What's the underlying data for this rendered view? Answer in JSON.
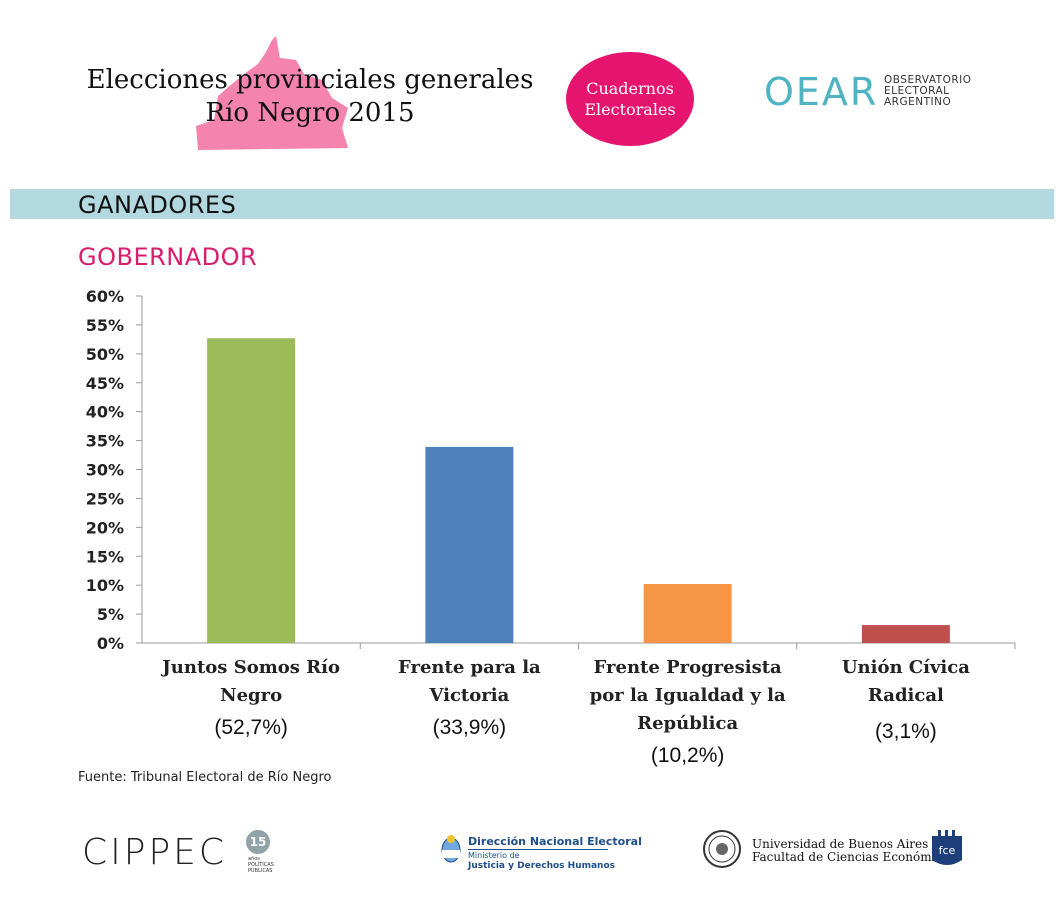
{
  "header": {
    "title_line1": "Elecciones provinciales generales",
    "title_line2": "Río Negro 2015",
    "badge_line1": "Cuadernos",
    "badge_line2": "Electorales",
    "oear_word": "OEAR",
    "oear_sub1": "OBSERVATORIO",
    "oear_sub2": "ELECTORAL",
    "oear_sub3": "ARGENTINO"
  },
  "section": {
    "title": "GANADORES",
    "subtitle": "GOBERNADOR"
  },
  "colors": {
    "accent_pink": "#e5146e",
    "subtitle_pink": "#d91c6c",
    "bar_band": "#b2d9e0",
    "province_pink": "#f483ad",
    "oear_teal": "#4fb3c4"
  },
  "chart_data": {
    "type": "bar",
    "title": "GOBERNADOR",
    "categories": [
      "Juntos Somos Río Negro",
      "Frente para la Victoria",
      "Frente Progresista por la Igualdad y la República",
      "Unión Cívica Radical"
    ],
    "category_lines": [
      [
        "Juntos Somos Río",
        "Negro"
      ],
      [
        "Frente para la",
        "Victoria"
      ],
      [
        "Frente Progresista",
        "por la Igualdad y la",
        "República"
      ],
      [
        "Unión Cívica",
        "Radical"
      ]
    ],
    "values": [
      52.7,
      33.9,
      10.2,
      3.1
    ],
    "value_labels": [
      "(52,7%)",
      "(33,9%)",
      "(10,2%)",
      "(3,1%)"
    ],
    "bar_colors": [
      "#9bbb59",
      "#4f81bd",
      "#f79646",
      "#c0504d"
    ],
    "ylim": [
      0,
      60
    ],
    "yticks": [
      0,
      5,
      10,
      15,
      20,
      25,
      30,
      35,
      40,
      45,
      50,
      55,
      60
    ],
    "ytick_labels": [
      "0%",
      "5%",
      "10%",
      "15%",
      "20%",
      "25%",
      "30%",
      "35%",
      "40%",
      "45%",
      "50%",
      "55%",
      "60%"
    ],
    "xlabel": "",
    "ylabel": "",
    "grid": false
  },
  "source_note": "Fuente: Tribunal Electoral de Río Negro",
  "footer": {
    "cippec_name": "CIPPEC",
    "cippec_badge": "15",
    "cippec_badge_sub": "años",
    "cippec_sub1": "POLÍTICAS",
    "cippec_sub2": "PÚBLICAS",
    "dne_title": "Dirección Nacional Electoral",
    "dne_ministry1": "Ministerio de",
    "dne_ministry2": "Justicia y Derechos Humanos",
    "uba_line1": "Universidad de Buenos Aires",
    "uba_line2": "Facultad de Ciencias Económicas",
    "fce_mark": "fce"
  }
}
